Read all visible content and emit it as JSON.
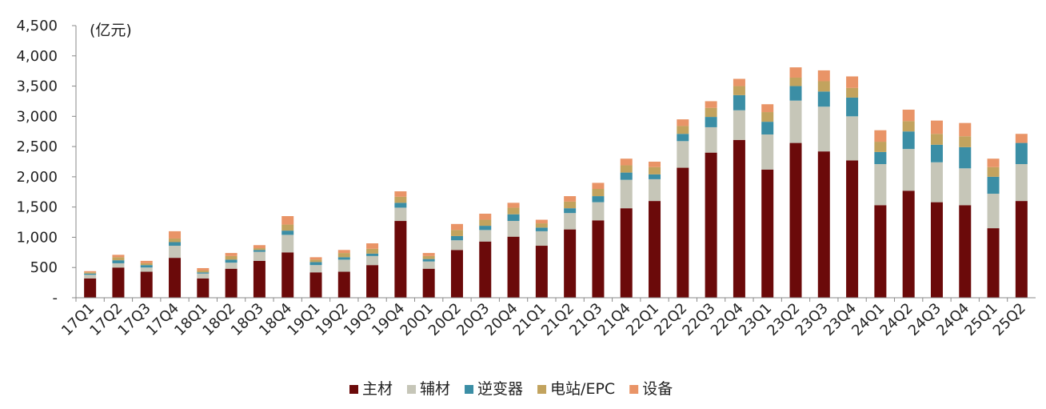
{
  "chart_data": {
    "type": "bar",
    "stacked": true,
    "unit_label": "(亿元)",
    "categories": [
      "17Q1",
      "17Q2",
      "17Q3",
      "17Q4",
      "18Q1",
      "18Q2",
      "18Q3",
      "18Q4",
      "19Q1",
      "19Q2",
      "19Q3",
      "19Q4",
      "20Q1",
      "20Q2",
      "20Q3",
      "20Q4",
      "21Q1",
      "21Q2",
      "21Q3",
      "21Q4",
      "22Q1",
      "22Q2",
      "22Q3",
      "22Q4",
      "23Q1",
      "23Q2",
      "23Q3",
      "23Q4",
      "24Q1",
      "24Q2",
      "24Q3",
      "24Q4",
      "25Q1",
      "25Q2"
    ],
    "series": [
      {
        "name": "主材",
        "color": "#6b0a0a",
        "values": [
          320,
          500,
          430,
          660,
          320,
          480,
          610,
          750,
          420,
          430,
          540,
          1270,
          480,
          790,
          930,
          1010,
          860,
          1130,
          1280,
          1480,
          1600,
          2150,
          2400,
          2610,
          2120,
          2560,
          2420,
          2270,
          1530,
          1770,
          1580,
          1530,
          1150,
          1600
        ]
      },
      {
        "name": "辅材",
        "color": "#c6c6b8",
        "values": [
          60,
          70,
          70,
          200,
          80,
          100,
          150,
          290,
          120,
          200,
          150,
          220,
          120,
          160,
          190,
          260,
          240,
          270,
          300,
          470,
          360,
          440,
          420,
          490,
          580,
          700,
          740,
          730,
          680,
          690,
          660,
          610,
          570,
          610
        ]
      },
      {
        "name": "逆变器",
        "color": "#3b8ea5",
        "values": [
          20,
          50,
          40,
          60,
          20,
          50,
          30,
          70,
          50,
          40,
          40,
          80,
          40,
          70,
          70,
          110,
          60,
          80,
          100,
          120,
          80,
          120,
          170,
          250,
          210,
          240,
          250,
          310,
          200,
          290,
          290,
          350,
          280,
          350
        ]
      },
      {
        "name": "电站/EPC",
        "color": "#c2a35e",
        "values": [
          20,
          50,
          30,
          60,
          30,
          60,
          30,
          100,
          40,
          70,
          80,
          100,
          50,
          100,
          100,
          110,
          70,
          110,
          120,
          120,
          120,
          130,
          150,
          150,
          160,
          140,
          170,
          160,
          170,
          170,
          180,
          180,
          160,
          0
        ]
      },
      {
        "name": "设备",
        "color": "#e99467",
        "values": [
          20,
          40,
          40,
          120,
          40,
          50,
          50,
          140,
          40,
          50,
          90,
          90,
          50,
          100,
          100,
          80,
          60,
          90,
          100,
          110,
          90,
          110,
          110,
          120,
          130,
          170,
          180,
          190,
          190,
          190,
          220,
          220,
          140,
          150
        ]
      }
    ],
    "yticks": [
      "-",
      "500",
      "1,000",
      "1,500",
      "2,000",
      "2,500",
      "3,000",
      "3,500",
      "4,000",
      "4,500"
    ],
    "ylim": [
      0,
      4500
    ],
    "grid": false,
    "legend_position": "bottom-center"
  }
}
